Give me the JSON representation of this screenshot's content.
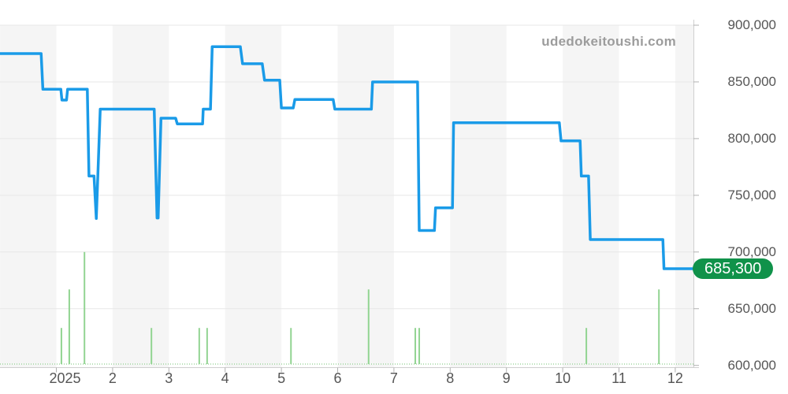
{
  "watermark": {
    "text": "udedokeitoushi.com"
  },
  "badge": {
    "label": "685,300"
  },
  "colors": {
    "line": "#1a9be8",
    "volume_bar": "#92d492",
    "baseline_dotted": "#9fd79f",
    "gridline": "#e7e7e7",
    "stripe": "#f5f5f5",
    "axis_line": "#cfcfcf",
    "tick": "#b0b0b0",
    "label_text": "#555555",
    "watermark_text": "#9c9c9c",
    "badge_bg": "#10924a",
    "badge_text": "#ffffff"
  },
  "chart_data": {
    "type": "line",
    "line_style": "step",
    "title": "",
    "xlabel": "",
    "ylabel": "",
    "legend": false,
    "grid": true,
    "background_stripes": "alternating monthly bands",
    "last_value": 685300,
    "y_axis": {
      "position": "right",
      "min": 600000,
      "max": 900000,
      "tick_interval": 50000,
      "tick_values": [
        900000,
        850000,
        800000,
        750000,
        700000,
        650000,
        600000
      ],
      "tick_labels": [
        "900,000",
        "850,000",
        "800,000",
        "750,000",
        "700,000",
        "650,000",
        "600,000"
      ]
    },
    "x_axis": {
      "tick_months": [
        1,
        2,
        3,
        4,
        5,
        6,
        7,
        8,
        9,
        10,
        11,
        12
      ],
      "tick_labels": [
        "2025",
        "2",
        "3",
        "4",
        "5",
        "6",
        "7",
        "8",
        "9",
        "10",
        "11",
        "12"
      ],
      "range_months": [
        0,
        12.34
      ]
    },
    "series": [
      {
        "name": "price",
        "points": [
          [
            0.0,
            875000
          ],
          [
            0.73,
            875000
          ],
          [
            0.76,
            843500
          ],
          [
            1.08,
            843500
          ],
          [
            1.1,
            834000
          ],
          [
            1.18,
            834000
          ],
          [
            1.2,
            843500
          ],
          [
            1.55,
            843500
          ],
          [
            1.58,
            767000
          ],
          [
            1.67,
            767000
          ],
          [
            1.71,
            729500
          ],
          [
            1.78,
            826000
          ],
          [
            2.74,
            826000
          ],
          [
            2.79,
            730000
          ],
          [
            2.81,
            730000
          ],
          [
            2.86,
            818000
          ],
          [
            3.12,
            818000
          ],
          [
            3.15,
            813000
          ],
          [
            3.6,
            813000
          ],
          [
            3.61,
            826000
          ],
          [
            3.74,
            826000
          ],
          [
            3.77,
            881000
          ],
          [
            4.27,
            881000
          ],
          [
            4.31,
            866000
          ],
          [
            4.66,
            866000
          ],
          [
            4.7,
            851500
          ],
          [
            4.97,
            851500
          ],
          [
            5.0,
            827000
          ],
          [
            5.21,
            827000
          ],
          [
            5.24,
            834500
          ],
          [
            5.92,
            834500
          ],
          [
            5.95,
            826000
          ],
          [
            6.6,
            826000
          ],
          [
            6.62,
            850000
          ],
          [
            7.42,
            850000
          ],
          [
            7.45,
            719000
          ],
          [
            7.72,
            719000
          ],
          [
            7.74,
            739000
          ],
          [
            8.04,
            739000
          ],
          [
            8.06,
            814000
          ],
          [
            9.94,
            814000
          ],
          [
            9.97,
            798000
          ],
          [
            10.31,
            798000
          ],
          [
            10.33,
            767000
          ],
          [
            10.46,
            767000
          ],
          [
            10.49,
            711000
          ],
          [
            11.78,
            711000
          ],
          [
            11.8,
            685300
          ],
          [
            12.34,
            685300
          ]
        ]
      }
    ],
    "volume_bars": [
      [
        1.09,
        633000
      ],
      [
        1.23,
        667000
      ],
      [
        1.5,
        700000
      ],
      [
        2.69,
        633000
      ],
      [
        3.54,
        633000
      ],
      [
        3.68,
        633000
      ],
      [
        5.17,
        633000
      ],
      [
        6.55,
        667000
      ],
      [
        7.38,
        633000
      ],
      [
        7.45,
        633000
      ],
      [
        10.42,
        633000
      ],
      [
        11.71,
        667000
      ]
    ]
  }
}
